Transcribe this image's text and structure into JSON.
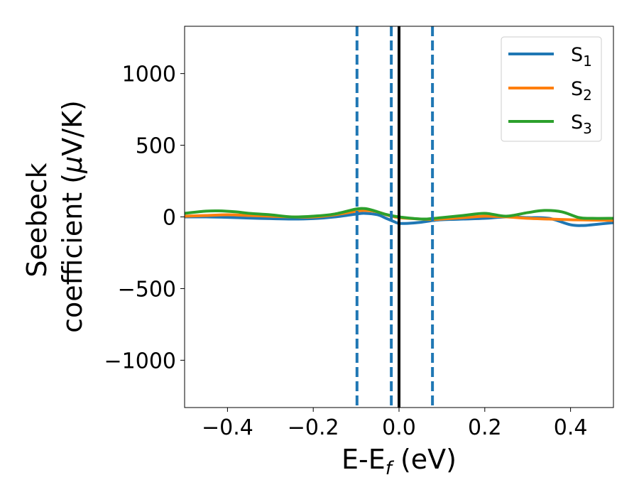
{
  "chart_data": {
    "type": "line",
    "title": "",
    "xlabel": {
      "main": "E-E",
      "sub": "f",
      "tail": " (eV)"
    },
    "ylabel": {
      "line1": "Seebeck",
      "line2": "coefficient  (",
      "mu": "μ",
      "line2_tail": "V/K)"
    },
    "xlim": [
      -0.5,
      0.5
    ],
    "ylim": [
      -1330,
      1330
    ],
    "xticks": [
      -0.4,
      -0.2,
      0.0,
      0.2,
      0.4
    ],
    "xtick_labels": [
      "−0.4",
      "−0.2",
      "0.0",
      "0.2",
      "0.4"
    ],
    "yticks": [
      -1000,
      -500,
      0,
      500,
      1000
    ],
    "ytick_labels": [
      "−1000",
      "−500",
      "0",
      "500",
      "1000"
    ],
    "grid": false,
    "legend_position": "top-right",
    "vlines": [
      {
        "x": 0.0,
        "style": "solid",
        "color": "#000000"
      },
      {
        "x": -0.098,
        "style": "dashed",
        "color": "#1f77b4"
      },
      {
        "x": -0.018,
        "style": "dashed",
        "color": "#1f77b4"
      },
      {
        "x": 0.078,
        "style": "dashed",
        "color": "#1f77b4"
      }
    ],
    "series": [
      {
        "name": {
          "main": "S",
          "sub": "1"
        },
        "color": "#1f77b4",
        "x": [
          -0.5,
          -0.45,
          -0.4,
          -0.35,
          -0.3,
          -0.25,
          -0.2,
          -0.15,
          -0.1,
          -0.08,
          -0.05,
          -0.03,
          -0.01,
          0.0,
          0.02,
          0.05,
          0.08,
          0.1,
          0.15,
          0.2,
          0.25,
          0.3,
          0.35,
          0.4,
          0.43,
          0.45,
          0.5
        ],
        "y": [
          0,
          0,
          -3,
          -8,
          -12,
          -15,
          -12,
          0,
          20,
          25,
          15,
          -10,
          -35,
          -45,
          -45,
          -38,
          -25,
          -20,
          -15,
          -10,
          0,
          -5,
          -10,
          -55,
          -60,
          -55,
          -40
        ]
      },
      {
        "name": {
          "main": "S",
          "sub": "2"
        },
        "color": "#ff7f0e",
        "x": [
          -0.5,
          -0.45,
          -0.4,
          -0.35,
          -0.3,
          -0.25,
          -0.2,
          -0.15,
          -0.1,
          -0.08,
          -0.05,
          -0.03,
          -0.01,
          0.0,
          0.02,
          0.05,
          0.08,
          0.1,
          0.15,
          0.2,
          0.25,
          0.3,
          0.35,
          0.4,
          0.45,
          0.5
        ],
        "y": [
          5,
          10,
          15,
          10,
          5,
          0,
          0,
          15,
          40,
          45,
          35,
          15,
          0,
          -5,
          -10,
          -15,
          -18,
          -15,
          -5,
          5,
          0,
          -10,
          -15,
          -20,
          -22,
          -25
        ]
      },
      {
        "name": {
          "main": "S",
          "sub": "3"
        },
        "color": "#2ca02c",
        "x": [
          -0.5,
          -0.45,
          -0.42,
          -0.38,
          -0.35,
          -0.3,
          -0.25,
          -0.2,
          -0.15,
          -0.1,
          -0.08,
          -0.06,
          -0.04,
          -0.02,
          0.0,
          0.03,
          0.06,
          0.1,
          0.15,
          0.2,
          0.25,
          0.3,
          0.34,
          0.38,
          0.42,
          0.45,
          0.5
        ],
        "y": [
          25,
          40,
          42,
          35,
          25,
          15,
          0,
          5,
          20,
          55,
          58,
          45,
          25,
          10,
          0,
          -10,
          -15,
          -5,
          10,
          25,
          5,
          30,
          45,
          35,
          -5,
          -10,
          -10
        ]
      }
    ]
  }
}
